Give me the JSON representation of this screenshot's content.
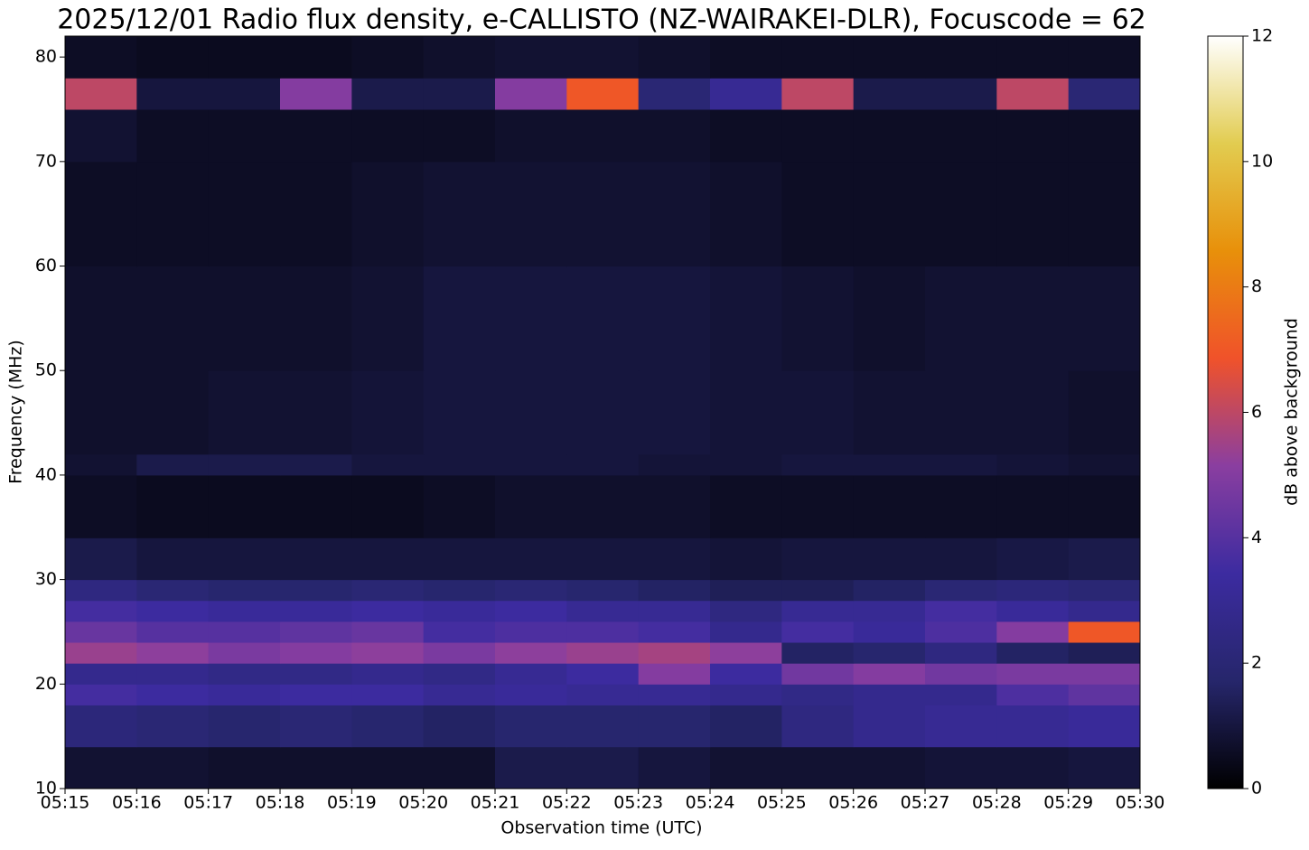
{
  "chart_data": {
    "type": "heatmap",
    "title": "2025/12/01 Radio flux density, e-CALLISTO (NZ-WAIRAKEI-DLR), Focuscode = 62",
    "x_label": "Observation time (UTC)",
    "y_label": "Frequency (MHz)",
    "colorbar_label": "dB above background",
    "x": [
      "05:15",
      "05:16",
      "05:17",
      "05:18",
      "05:19",
      "05:20",
      "05:21",
      "05:22",
      "05:23",
      "05:24",
      "05:25",
      "05:26",
      "05:27",
      "05:28",
      "05:29",
      "05:30"
    ],
    "ybins": [
      10,
      14,
      18,
      20,
      22,
      24,
      26,
      28,
      30,
      34,
      40,
      42,
      50,
      60,
      70,
      75,
      78,
      82
    ],
    "ylim": [
      10,
      82
    ],
    "yticks": [
      10,
      20,
      30,
      40,
      50,
      60,
      70,
      80
    ],
    "clim": [
      0,
      12
    ],
    "cticks": [
      0,
      2,
      4,
      6,
      8,
      10,
      12
    ],
    "colormap": [
      "#000000",
      "#26266b",
      "#3c2ba0",
      "#8a3ea0",
      "#f0522a",
      "#e8900a",
      "#e2cc50",
      "#ffffff"
    ],
    "values": [
      [
        0.8,
        0.8,
        0.7,
        0.7,
        0.7,
        0.7,
        1.2,
        1.2,
        1.0,
        0.8,
        0.8,
        0.8,
        0.9,
        0.9,
        1.0
      ],
      [
        2.2,
        2.0,
        1.8,
        2.0,
        1.8,
        1.6,
        1.8,
        1.8,
        1.8,
        1.6,
        2.4,
        2.8,
        3.0,
        3.0,
        3.2
      ],
      [
        3.6,
        3.4,
        3.2,
        3.4,
        3.4,
        3.0,
        3.2,
        3.0,
        3.0,
        2.8,
        2.6,
        2.8,
        2.8,
        3.8,
        4.2
      ],
      [
        2.8,
        2.8,
        2.6,
        2.6,
        2.8,
        2.6,
        3.0,
        3.4,
        5.0,
        3.4,
        4.6,
        5.0,
        4.6,
        4.8,
        4.8
      ],
      [
        5.4,
        5.2,
        4.8,
        5.0,
        5.2,
        4.8,
        5.2,
        5.4,
        5.6,
        5.2,
        1.6,
        1.8,
        2.4,
        1.6,
        1.4
      ],
      [
        4.4,
        4.0,
        4.0,
        4.2,
        4.4,
        3.6,
        3.8,
        3.8,
        3.6,
        2.8,
        3.6,
        3.2,
        3.8,
        5.0,
        7.0
      ],
      [
        3.6,
        3.4,
        3.2,
        3.2,
        3.4,
        3.2,
        3.4,
        3.0,
        3.0,
        2.4,
        3.0,
        3.0,
        3.6,
        3.2,
        2.8
      ],
      [
        2.4,
        2.0,
        1.8,
        1.8,
        2.0,
        1.8,
        2.0,
        1.8,
        1.6,
        1.4,
        1.4,
        1.6,
        2.0,
        2.2,
        2.0
      ],
      [
        1.2,
        1.0,
        1.0,
        1.0,
        1.0,
        1.0,
        1.0,
        1.0,
        1.0,
        0.9,
        1.0,
        1.0,
        1.0,
        1.1,
        1.2
      ],
      [
        0.6,
        0.5,
        0.5,
        0.5,
        0.5,
        0.6,
        0.7,
        0.7,
        0.7,
        0.6,
        0.6,
        0.6,
        0.6,
        0.6,
        0.6
      ],
      [
        0.8,
        1.2,
        1.2,
        1.2,
        1.0,
        1.0,
        1.0,
        1.0,
        0.9,
        0.9,
        1.0,
        1.0,
        1.0,
        0.9,
        0.8
      ],
      [
        0.7,
        0.7,
        0.8,
        0.8,
        0.9,
        1.0,
        1.0,
        1.0,
        1.0,
        0.9,
        0.9,
        0.8,
        0.8,
        0.8,
        0.7
      ],
      [
        0.7,
        0.7,
        0.7,
        0.7,
        0.8,
        1.0,
        1.0,
        1.0,
        1.0,
        0.9,
        0.8,
        0.7,
        0.8,
        0.8,
        0.8
      ],
      [
        0.6,
        0.6,
        0.6,
        0.6,
        0.7,
        0.8,
        0.8,
        0.8,
        0.8,
        0.7,
        0.6,
        0.6,
        0.6,
        0.6,
        0.6
      ],
      [
        0.8,
        0.6,
        0.6,
        0.6,
        0.6,
        0.6,
        0.7,
        0.7,
        0.7,
        0.6,
        0.6,
        0.6,
        0.6,
        0.6,
        0.6
      ],
      [
        6.0,
        1.0,
        1.0,
        5.0,
        1.2,
        1.2,
        5.0,
        7.0,
        2.0,
        3.0,
        6.0,
        1.2,
        1.2,
        6.0,
        2.0
      ],
      [
        0.6,
        0.5,
        0.5,
        0.5,
        0.6,
        0.7,
        0.8,
        0.8,
        0.7,
        0.6,
        0.6,
        0.6,
        0.6,
        0.6,
        0.6
      ]
    ]
  }
}
